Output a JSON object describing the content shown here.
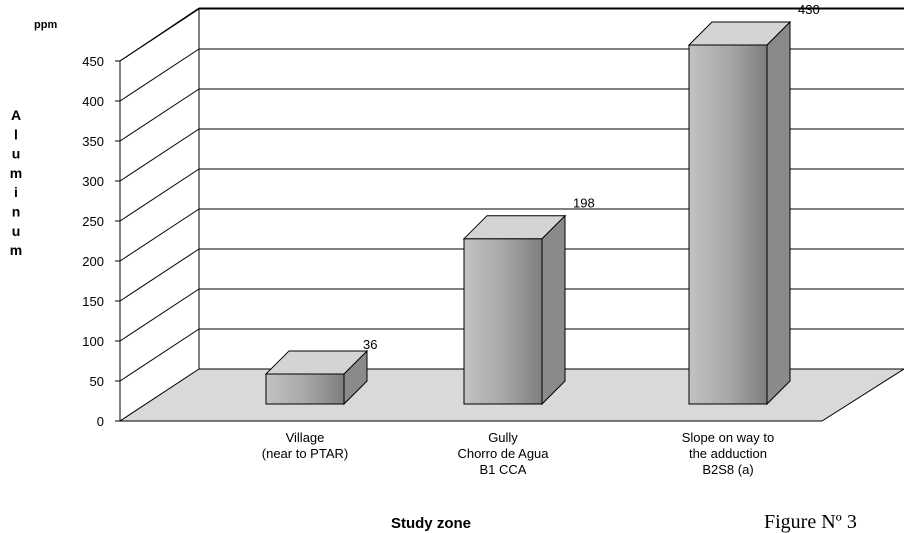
{
  "chart_data": {
    "type": "bar",
    "categories": [
      [
        "Village",
        "(near to  PTAR)"
      ],
      [
        "Gully",
        "Chorro de Agua",
        "B1  CCA"
      ],
      [
        "Slope on way to",
        "the adduction",
        "B2S8 (a)"
      ]
    ],
    "values": [
      36,
      198,
      430
    ],
    "data_labels": [
      "36",
      "198",
      "430"
    ],
    "unit_label": "ppm",
    "ylabel": "Aluminum",
    "xlabel": "Study zone",
    "ylim": [
      0,
      450
    ],
    "yticks": [
      "0",
      "50",
      "100",
      "150",
      "200",
      "250",
      "300",
      "350",
      "400",
      "450"
    ],
    "grid": true,
    "three_d": true,
    "colors": {
      "bar_front": "#a9a9a9",
      "bar_side": "#8a8a8a",
      "bar_top": "#d4d4d4",
      "floor": "#d9d9d9"
    }
  },
  "figure_caption": "Figure  Nº  3"
}
